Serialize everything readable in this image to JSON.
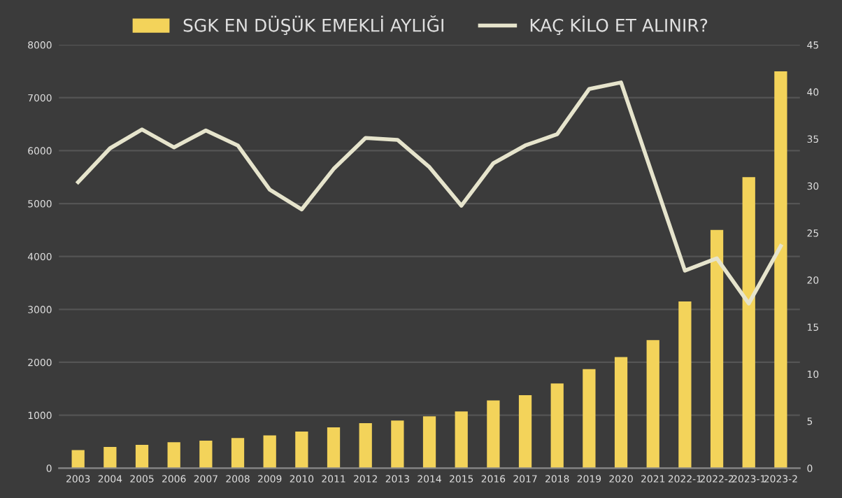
{
  "chart_data": {
    "type": "bar",
    "categories": [
      "2003",
      "2004",
      "2005",
      "2006",
      "2007",
      "2008",
      "2009",
      "2010",
      "2011",
      "2012",
      "2013",
      "2014",
      "2015",
      "2016",
      "2017",
      "2018",
      "2019",
      "2020",
      "2021",
      "2022-1",
      "2022-2",
      "2023-1",
      "2023-2"
    ],
    "series": [
      {
        "name": "SGK EN DÜŞÜK EMEKLİ AYLIĞI",
        "color": "#f3d35a",
        "values": [
          340,
          400,
          440,
          490,
          520,
          570,
          620,
          690,
          770,
          850,
          900,
          980,
          1070,
          1280,
          1380,
          1600,
          1870,
          2100,
          2420,
          3150,
          4500,
          5500,
          7500
        ]
      },
      {
        "name": "KAÇ KİLO ET ALINIR?",
        "type": "line",
        "axis": "y2",
        "color": "#e6e4cc",
        "values": [
          30.4,
          34.0,
          36.0,
          34.1,
          35.9,
          34.3,
          29.6,
          27.5,
          31.8,
          35.1,
          34.9,
          32.0,
          27.9,
          32.4,
          34.3,
          35.5,
          40.3,
          41.0,
          31.0,
          21.0,
          22.3,
          17.5,
          23.6
        ]
      }
    ],
    "ylim": [
      0,
      8000
    ],
    "yticks": [
      0,
      1000,
      2000,
      3000,
      4000,
      5000,
      6000,
      7000,
      8000
    ],
    "y2lim": [
      0,
      45
    ],
    "y2ticks": [
      0,
      5,
      10,
      15,
      20,
      25,
      30,
      35,
      40,
      45
    ],
    "grid": "y",
    "legend": "top",
    "marker": "none",
    "line_style": "solid"
  }
}
